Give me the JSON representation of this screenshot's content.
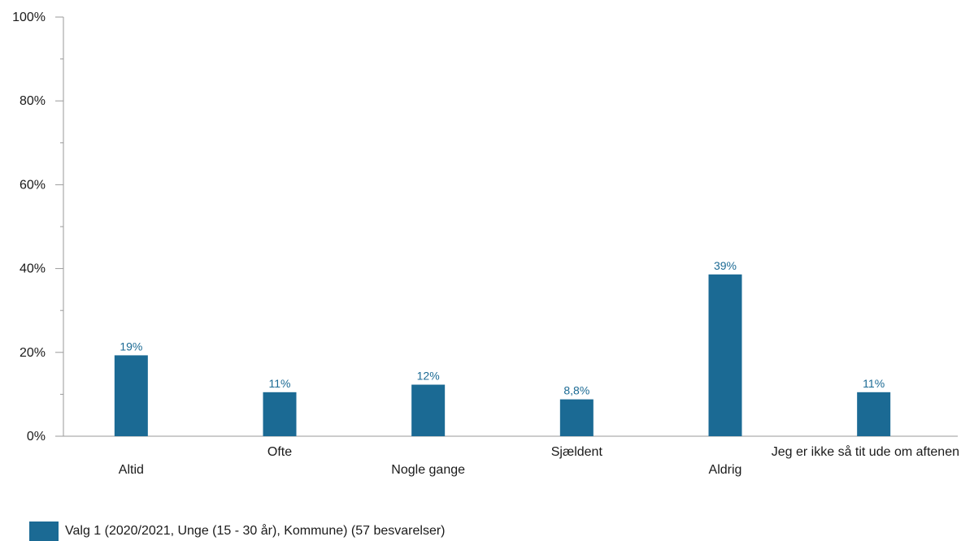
{
  "chart_data": {
    "type": "bar",
    "categories": [
      "Altid",
      "Ofte",
      "Nogle gange",
      "Sjældent",
      "Aldrig",
      "Jeg er ikke så tit ude om aftenen"
    ],
    "series": [
      {
        "name": "Valg 1 (2020/2021, Unge (15 - 30 år), Kommune) (57 besvarelser)",
        "values": [
          19.3,
          10.5,
          12.3,
          8.8,
          38.6,
          10.5
        ],
        "data_labels": [
          "19%",
          "11%",
          "12%",
          "8,8%",
          "39%",
          "11%"
        ],
        "color": "#1b6a94"
      }
    ],
    "ylim": [
      0,
      100
    ],
    "yticks": [
      0,
      20,
      40,
      60,
      80,
      100
    ],
    "ytick_labels": [
      "0%",
      "20%",
      "40%",
      "60%",
      "80%",
      "100%"
    ],
    "minor_ticks": true,
    "grid": false,
    "legend_position": "bottom-left",
    "title": "",
    "xlabel": "",
    "ylabel": ""
  },
  "legend": {
    "label": "Valg 1 (2020/2021, Unge (15 - 30 år), Kommune) (57 besvarelser)",
    "color": "#1b6a94"
  },
  "colors": {
    "axis": "#9a9a9a",
    "text": "#1a1a1a",
    "data_label": "#1b6a94"
  }
}
